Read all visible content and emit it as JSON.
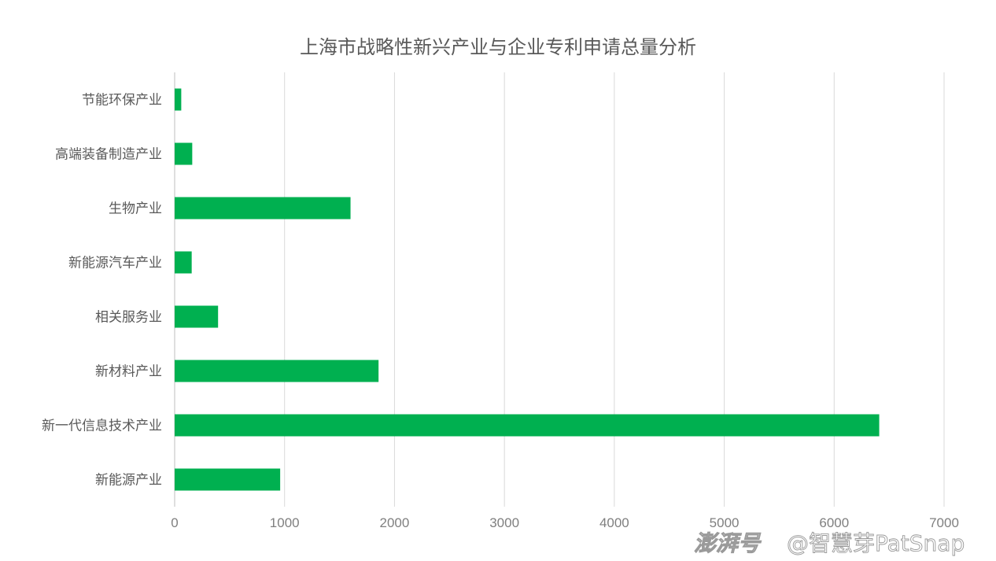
{
  "chart_data": {
    "type": "bar",
    "orientation": "horizontal",
    "title": "上海市战略性新兴产业与企业专利申请总量分析",
    "categories": [
      "节能环保产业",
      "高端装备制造产业",
      "生物产业",
      "新能源汽车产业",
      "相关服务业",
      "新材料产业",
      "新一代信息技术产业",
      "新能源产业"
    ],
    "values": [
      60,
      160,
      1600,
      155,
      395,
      1855,
      6410,
      960
    ],
    "xlim": [
      0,
      7000
    ],
    "xticks": [
      "0",
      "1000",
      "2000",
      "3000",
      "4000",
      "5000",
      "6000",
      "7000"
    ],
    "xlabel": "",
    "ylabel": "",
    "grid": "vertical",
    "legend": "none",
    "bar_color": "#00b050"
  },
  "watermark": {
    "logo": "澎湃号",
    "text": "@智慧芽PatSnap"
  }
}
